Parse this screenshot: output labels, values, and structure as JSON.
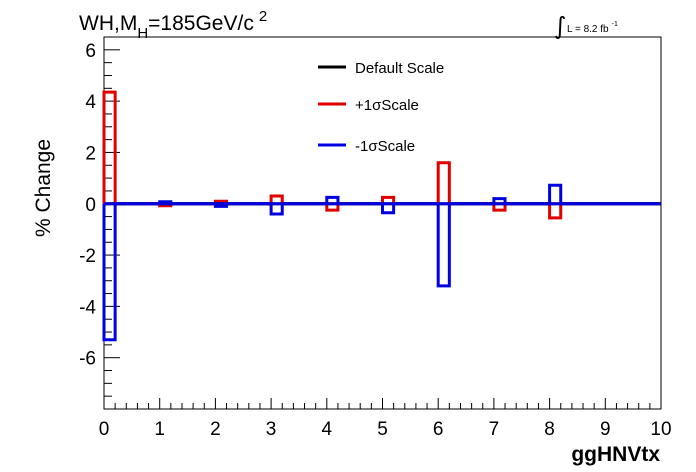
{
  "chart_data": {
    "type": "step",
    "title_main": "WH,M",
    "title_sub": "H",
    "title_rest": "=185GeV/c",
    "title_sup": "2",
    "lumi_label": "L = 8.2 fb",
    "lumi_sup": "-1",
    "xlabel": "ggHNVtx",
    "ylabel": "% Change",
    "xlim": [
      0,
      10
    ],
    "ylim": [
      -8,
      6.5
    ],
    "xticks": [
      0,
      1,
      2,
      3,
      4,
      5,
      6,
      7,
      8,
      9,
      10
    ],
    "yticks": [
      -6,
      -4,
      -2,
      0,
      2,
      4,
      6
    ],
    "bins": [
      0,
      1,
      2,
      3,
      4,
      5,
      6,
      7,
      8,
      9
    ],
    "bin_width": 0.2,
    "legend_position": "top-center",
    "series": [
      {
        "name": "Default Scale",
        "color": "#000000",
        "values": [
          0,
          0,
          0,
          0,
          0,
          0,
          0,
          0,
          0,
          0
        ]
      },
      {
        "name": "+1σScale",
        "color": "#e00000",
        "values": [
          4.35,
          -0.08,
          0.1,
          0.3,
          -0.25,
          0.25,
          1.6,
          -0.25,
          -0.55,
          0
        ]
      },
      {
        "name": "-1σScale",
        "color": "#0000e0",
        "values": [
          -5.3,
          0.08,
          -0.1,
          -0.4,
          0.25,
          -0.35,
          -3.2,
          0.2,
          0.72,
          0
        ]
      }
    ]
  }
}
